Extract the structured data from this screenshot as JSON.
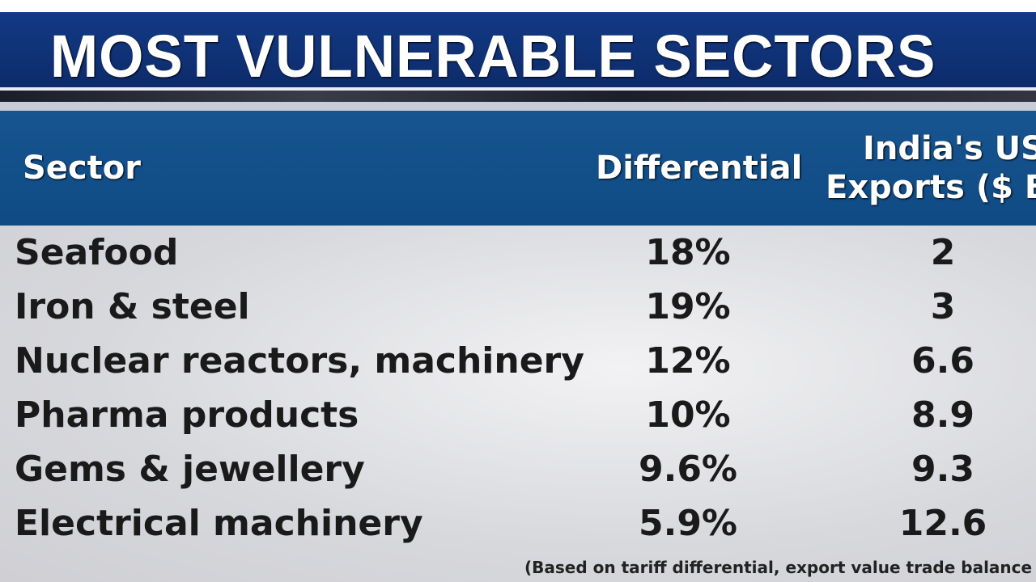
{
  "title": "MOST VULNERABLE SECTORS",
  "chart_data": {
    "type": "table",
    "title": "MOST VULNERABLE SECTORS",
    "columns": [
      "Sector",
      "Differential",
      "India's US Exports ($ Bn"
    ],
    "rows": [
      {
        "sector": "Seafood",
        "differential": "18%",
        "exports": "2"
      },
      {
        "sector": "Iron & steel",
        "differential": "19%",
        "exports": "3"
      },
      {
        "sector": "Nuclear reactors, machinery",
        "differential": "12%",
        "exports": "6.6"
      },
      {
        "sector": "Pharma products",
        "differential": "10%",
        "exports": "8.9"
      },
      {
        "sector": "Gems & jewellery",
        "differential": "9.6%",
        "exports": "9.3"
      },
      {
        "sector": "Electrical machinery",
        "differential": "5.9%",
        "exports": "12.6"
      }
    ],
    "footnote": "(Based on tariff differential, export value trade balance"
  },
  "header": {
    "col_exports_line1": "India's US",
    "col_exports_line2": "Exports ($ Bn"
  },
  "colors": {
    "title_bar": "#0f2f73",
    "header_bar": "#134f8a"
  }
}
